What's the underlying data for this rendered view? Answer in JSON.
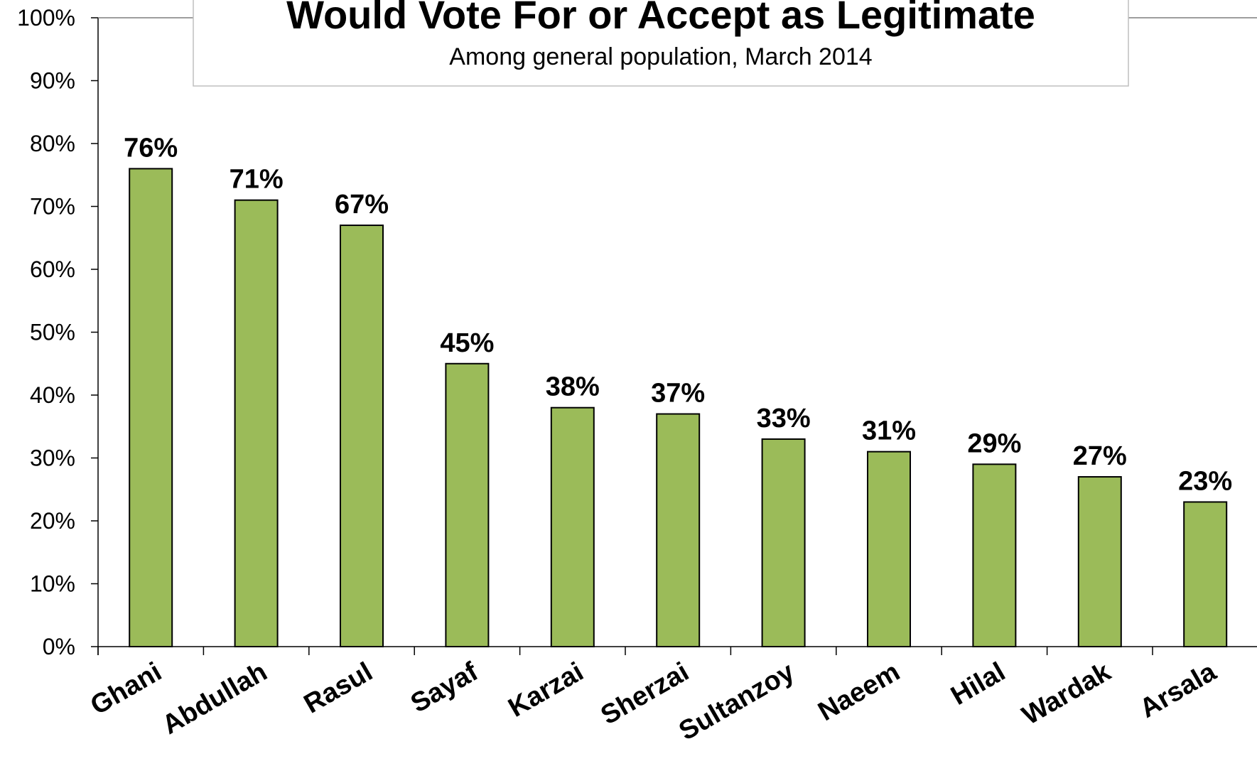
{
  "chart_data": {
    "type": "bar",
    "title": "Would Vote For or Accept as Legitimate",
    "subtitle": "Among general population, March 2014",
    "categories": [
      "Ghani",
      "Abdullah",
      "Rasul",
      "Sayaf",
      "Karzai",
      "Sherzai",
      "Sultanzoy",
      "Naeem",
      "Hilal",
      "Wardak",
      "Arsala"
    ],
    "values": [
      76,
      71,
      67,
      45,
      38,
      37,
      33,
      31,
      29,
      27,
      23
    ],
    "data_labels": [
      "76%",
      "71%",
      "67%",
      "45%",
      "38%",
      "37%",
      "33%",
      "31%",
      "29%",
      "27%",
      "23%"
    ],
    "y_ticks": [
      "0%",
      "10%",
      "20%",
      "30%",
      "40%",
      "50%",
      "60%",
      "70%",
      "80%",
      "90%",
      "100%"
    ],
    "ylim": [
      0,
      100
    ],
    "xlabel": "",
    "ylabel": "",
    "grid": false,
    "legend": "none",
    "bar_color": "#9bbb59",
    "bar_outline_color": "#000000"
  }
}
